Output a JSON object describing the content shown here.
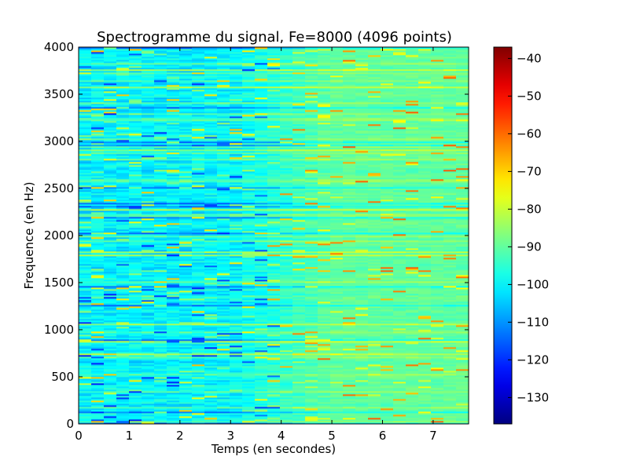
{
  "chart_data": {
    "type": "heatmap",
    "title": "Spectrogramme du signal, Fe=8000 (4096 points)",
    "xlabel": "Temps (en secondes)",
    "ylabel": "Frequence (en Hz)",
    "xlim": [
      0,
      7.7
    ],
    "ylim": [
      0,
      4000
    ],
    "x_ticks": [
      0,
      1,
      2,
      3,
      4,
      5,
      6,
      7
    ],
    "y_ticks": [
      0,
      500,
      1000,
      1500,
      2000,
      2500,
      3000,
      3500,
      4000
    ],
    "colorbar": {
      "colormap": "jet",
      "range": [
        -137,
        -37
      ],
      "ticks": [
        -130,
        -120,
        -110,
        -100,
        -90,
        -80,
        -70,
        -60,
        -50,
        -40
      ]
    },
    "typical_level_db": {
      "t_0_to_3s": -100,
      "t_5_to_7_7s": -90
    },
    "grid": false
  }
}
